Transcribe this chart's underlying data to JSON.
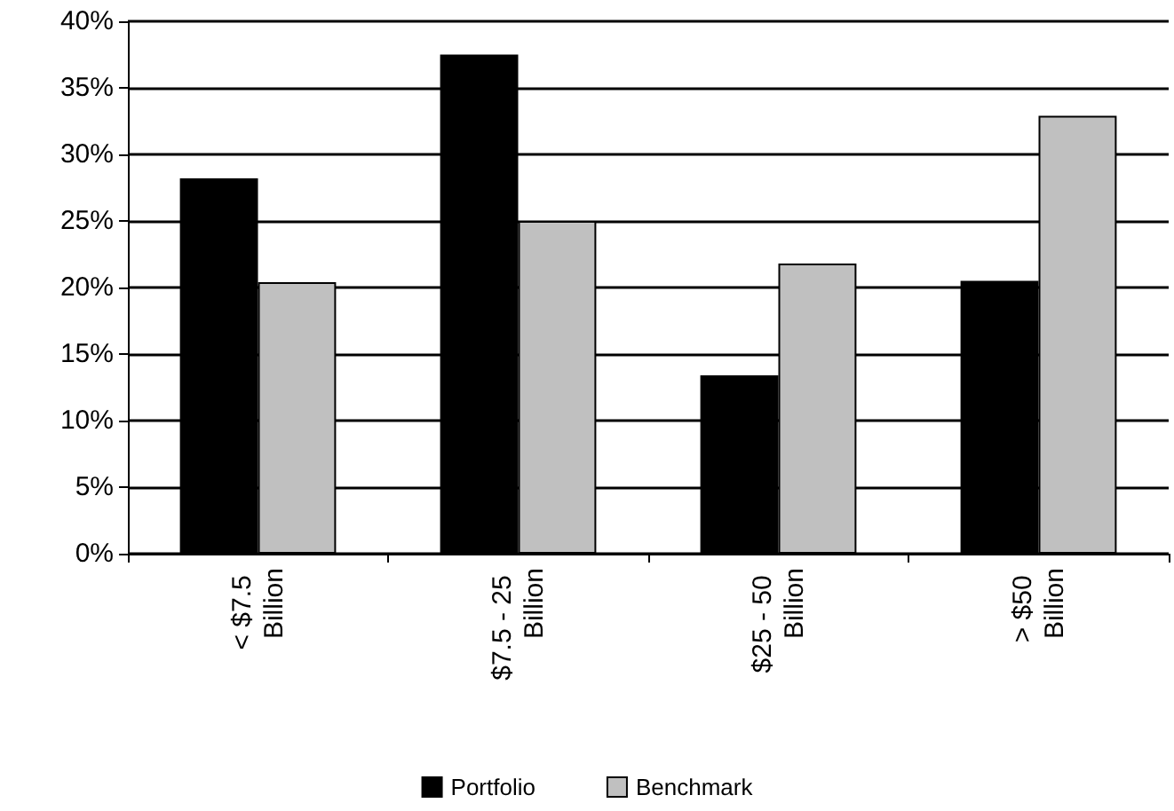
{
  "chart_data": {
    "type": "bar",
    "categories": [
      "< $7.5 Billion",
      "$7.5 - 25 Billion",
      "$25 - 50 Billion",
      "> $50 Billion"
    ],
    "series": [
      {
        "name": "Portfolio",
        "color": "#000000",
        "values": [
          28.2,
          37.5,
          13.4,
          20.5
        ]
      },
      {
        "name": "Benchmark",
        "color": "#c0c0c0",
        "values": [
          20.4,
          25.0,
          21.8,
          32.9
        ]
      }
    ],
    "ylim": [
      0,
      40
    ],
    "yticks": [
      {
        "value": 0,
        "label": "0%"
      },
      {
        "value": 5,
        "label": "5%"
      },
      {
        "value": 10,
        "label": "10%"
      },
      {
        "value": 15,
        "label": "15%"
      },
      {
        "value": 20,
        "label": "20%"
      },
      {
        "value": 25,
        "label": "25%"
      },
      {
        "value": 30,
        "label": "30%"
      },
      {
        "value": 35,
        "label": "35%"
      },
      {
        "value": 40,
        "label": "40%"
      }
    ],
    "grid": "y",
    "legend": "bottom"
  }
}
